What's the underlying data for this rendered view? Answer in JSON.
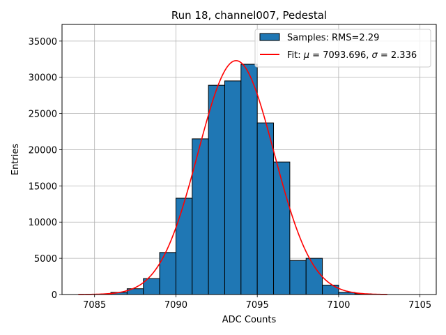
{
  "chart_data": {
    "type": "bar",
    "title": "Run 18, channel007, Pedestal",
    "xlabel": "ADC Counts",
    "ylabel": "Entries",
    "xlim": [
      7083.0,
      7106.0
    ],
    "ylim": [
      0,
      37300
    ],
    "xticks": [
      7085,
      7090,
      7095,
      7100,
      7105
    ],
    "yticks": [
      0,
      5000,
      10000,
      15000,
      20000,
      25000,
      30000,
      35000
    ],
    "grid": true,
    "legend_position": "top-right",
    "bin_width": 1,
    "histogram": {
      "name": "Samples: RMS=2.29",
      "color": "#1f77b4",
      "bins": [
        {
          "left": 7086,
          "value": 300
        },
        {
          "left": 7087,
          "value": 800
        },
        {
          "left": 7088,
          "value": 2200
        },
        {
          "left": 7089,
          "value": 5800
        },
        {
          "left": 7090,
          "value": 13300
        },
        {
          "left": 7091,
          "value": 21500
        },
        {
          "left": 7092,
          "value": 28900
        },
        {
          "left": 7093,
          "value": 29500
        },
        {
          "left": 7094,
          "value": 31800
        },
        {
          "left": 7095,
          "value": 23700
        },
        {
          "left": 7096,
          "value": 18300
        },
        {
          "left": 7097,
          "value": 4700
        },
        {
          "left": 7098,
          "value": 5000
        },
        {
          "left": 7099,
          "value": 1300
        },
        {
          "left": 7100,
          "value": 300
        },
        {
          "left": 7101,
          "value": 100
        }
      ]
    },
    "fit": {
      "name_prefix": "Fit: ",
      "mu_symbol": "μ",
      "mu_text": " = 7093.696, ",
      "sigma_symbol": "σ",
      "sigma_text": " = 2.336",
      "color": "#ff0000",
      "mu": 7093.696,
      "sigma": 2.336,
      "amplitude": 32300,
      "x_range": [
        7084,
        7103
      ]
    }
  }
}
